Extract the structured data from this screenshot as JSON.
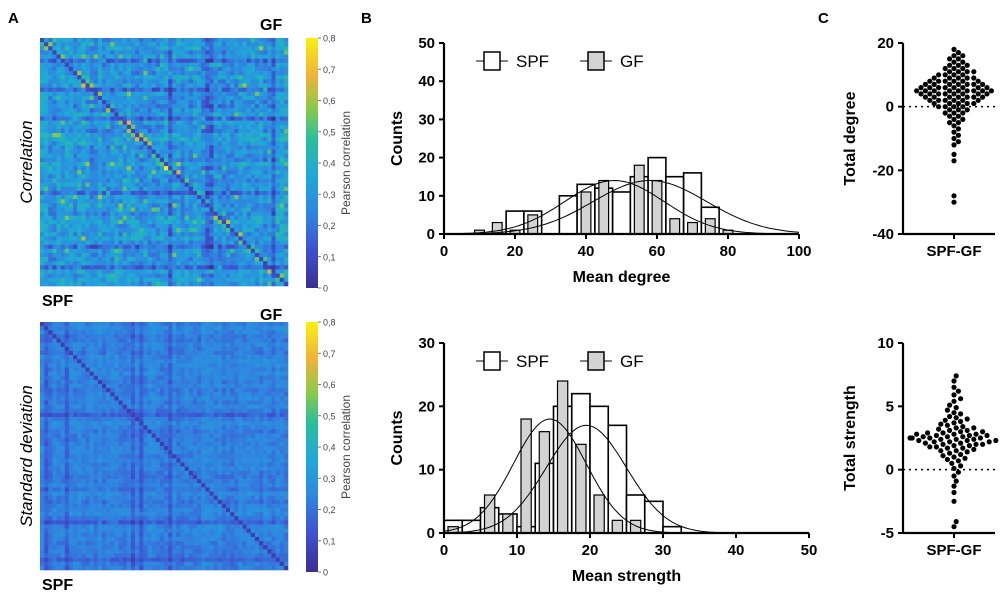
{
  "panels": {
    "a": "A",
    "b": "B",
    "c": "C"
  },
  "heatmaps": [
    {
      "upper_label": "GF",
      "lower_label": "SPF",
      "row_label": "Correlation",
      "colorbar_label": "Pearson correlation",
      "ticks": [
        "0",
        "0,1",
        "0,2",
        "0,3",
        "0,4",
        "0,5",
        "0,6",
        "0,7",
        "0,8"
      ]
    },
    {
      "upper_label": "GF",
      "lower_label": "SPF",
      "row_label": "Standard deviation",
      "colorbar_label": "Pearson correlation",
      "ticks": [
        "0",
        "0,1",
        "0,2",
        "0,3",
        "0,4",
        "0,5",
        "0,6",
        "0,7",
        "0,8"
      ]
    }
  ],
  "colors": {
    "spf_fill": "#ffffff",
    "gf_fill": "#d3d3d3",
    "heat_low": "#3a3fb8",
    "heat_mid": "#2f8fd6",
    "heat_high": "#f2e31b"
  },
  "chart_data": [
    {
      "type": "bar",
      "ylabel": "Counts",
      "xlabel": "Mean degree",
      "xlim": [
        0,
        100
      ],
      "ylim": [
        0,
        50
      ],
      "xticks": [
        "0",
        "20",
        "40",
        "60",
        "80",
        "100"
      ],
      "yticks": [
        "0",
        "10",
        "20",
        "30",
        "40",
        "50"
      ],
      "bin_width": 5,
      "bin_centers": [
        10,
        15,
        20,
        25,
        30,
        35,
        40,
        45,
        50,
        55,
        60,
        65,
        70,
        75,
        80
      ],
      "legend": [
        "SPF",
        "GF"
      ],
      "series": [
        {
          "name": "SPF",
          "values": [
            0,
            0,
            6,
            6,
            0,
            10,
            13,
            12,
            11,
            15,
            20,
            15,
            16,
            7,
            0
          ]
        },
        {
          "name": "GF",
          "values": [
            1,
            3,
            1,
            5,
            0,
            0,
            11,
            14,
            0,
            18,
            14,
            4,
            3,
            4,
            1
          ]
        }
      ],
      "fit": [
        {
          "name": "SPF",
          "mean": 58,
          "sd": 16,
          "peak": 14
        },
        {
          "name": "GF",
          "mean": 48,
          "sd": 14,
          "peak": 14
        }
      ]
    },
    {
      "type": "bar",
      "ylabel": "Counts",
      "xlabel": "Mean strength",
      "xlim": [
        0,
        50
      ],
      "ylim": [
        0,
        30
      ],
      "xticks": [
        "0",
        "10",
        "20",
        "30",
        "40",
        "50"
      ],
      "yticks": [
        "0",
        "10",
        "20",
        "30"
      ],
      "bin_width": 2.5,
      "bin_centers": [
        1.25,
        3.75,
        6.25,
        8.75,
        11.25,
        13.75,
        16.25,
        18.75,
        21.25,
        23.75,
        26.25,
        28.75,
        31.25
      ],
      "legend": [
        "SPF",
        "GF"
      ],
      "series": [
        {
          "name": "SPF",
          "values": [
            2,
            2,
            4,
            3,
            1,
            11,
            20,
            22,
            20,
            17,
            6,
            5,
            1
          ]
        },
        {
          "name": "GF",
          "values": [
            1,
            0,
            6,
            3,
            18,
            16,
            24,
            14,
            6,
            2,
            2,
            0,
            0
          ]
        }
      ],
      "fit": [
        {
          "name": "SPF",
          "mean": 19.5,
          "sd": 5.5,
          "peak": 17
        },
        {
          "name": "GF",
          "mean": 14.5,
          "sd": 5,
          "peak": 18
        }
      ]
    },
    {
      "type": "scatter",
      "ylabel": "Total degree",
      "xlabel": "SPF-GF",
      "ylim": [
        -40,
        20
      ],
      "yticks": [
        "20",
        "0",
        "-20",
        "-40"
      ],
      "y_values": [
        18,
        17,
        16,
        16,
        15,
        15,
        14,
        14,
        13,
        13,
        13,
        12,
        12,
        12,
        11,
        11,
        11,
        11,
        10,
        10,
        10,
        10,
        9,
        9,
        9,
        9,
        9,
        8,
        8,
        8,
        8,
        8,
        8,
        7,
        7,
        7,
        7,
        7,
        7,
        7,
        6,
        6,
        6,
        6,
        6,
        6,
        6,
        6,
        5,
        5,
        5,
        5,
        5,
        5,
        5,
        5,
        5,
        4,
        4,
        4,
        4,
        4,
        4,
        4,
        4,
        3,
        3,
        3,
        3,
        3,
        3,
        3,
        2,
        2,
        2,
        2,
        2,
        2,
        1,
        1,
        1,
        1,
        1,
        0,
        0,
        0,
        0,
        -1,
        -1,
        -1,
        -2,
        -2,
        -2,
        -3,
        -3,
        -4,
        -4,
        -5,
        -5,
        -6,
        -7,
        -8,
        -9,
        -10,
        -11,
        -12,
        -15,
        -17,
        -28,
        -30
      ]
    },
    {
      "type": "scatter",
      "ylabel": "Total strength",
      "xlabel": "SPF-GF",
      "ylim": [
        -5,
        10
      ],
      "yticks": [
        "10",
        "5",
        "0",
        "-5"
      ],
      "y_values": [
        7.4,
        7.0,
        6.5,
        6.2,
        5.9,
        5.6,
        5.4,
        5.1,
        4.9,
        4.7,
        4.5,
        4.4,
        4.2,
        4.1,
        4.0,
        3.9,
        3.8,
        3.7,
        3.6,
        3.5,
        3.4,
        3.3,
        3.3,
        3.2,
        3.1,
        3.1,
        3.0,
        3.0,
        2.9,
        2.9,
        2.8,
        2.8,
        2.8,
        2.7,
        2.7,
        2.7,
        2.6,
        2.6,
        2.6,
        2.5,
        2.5,
        2.5,
        2.5,
        2.4,
        2.4,
        2.4,
        2.3,
        2.3,
        2.3,
        2.2,
        2.2,
        2.2,
        2.1,
        2.1,
        2.0,
        2.0,
        2.0,
        1.9,
        1.9,
        1.8,
        1.8,
        1.7,
        1.7,
        1.6,
        1.5,
        1.5,
        1.4,
        1.3,
        1.2,
        1.1,
        1.0,
        0.9,
        0.8,
        0.7,
        0.5,
        0.3,
        0.1,
        -0.2,
        -0.5,
        -0.9,
        -1.3,
        -1.8,
        -2.5,
        -4.1,
        -4.5
      ]
    }
  ]
}
